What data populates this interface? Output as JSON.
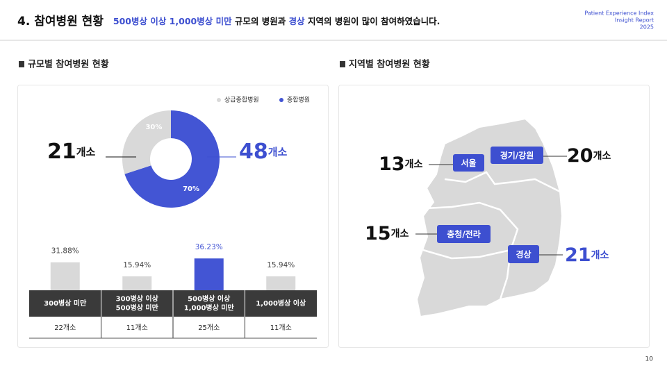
{
  "header": {
    "number_title": "4. 참여병원 현황",
    "highlight_1": "500병상 이상 1,000병상 미만",
    "text_1": " 규모의 병원과 ",
    "highlight_2": "경상",
    "text_2": " 지역의 병원이 많이 참여하였습니다.",
    "brand": [
      "Patient Experience Index",
      "Insight Report",
      "2025"
    ]
  },
  "size_section": {
    "title": "규모별 참여병원 현황",
    "donut": {
      "series": [
        {
          "name": "상급종합병원",
          "color": "#d9d9d9",
          "value": 30,
          "label": "30%",
          "count": "21",
          "unit": "개소"
        },
        {
          "name": "종합병원",
          "color": "#4355d4",
          "value": 70,
          "label": "70%",
          "count": "48",
          "unit": "개소"
        }
      ]
    },
    "bars": {
      "values": [
        31.88,
        15.94,
        36.23,
        15.94
      ],
      "value_labels": [
        "31.88%",
        "15.94%",
        "36.23%",
        "15.94%"
      ],
      "colors": [
        "#d9d9d9",
        "#d9d9d9",
        "#4355d4",
        "#d9d9d9"
      ],
      "highlight_color": "#4355d4"
    },
    "table": {
      "header": [
        [
          "300병상 미만"
        ],
        [
          "300병상 이상",
          "500병상 미만"
        ],
        [
          "500병상 이상",
          "1,000병상 미만"
        ],
        [
          "1,000병상 이상"
        ]
      ],
      "row": [
        "22개소",
        "11개소",
        "25개소",
        "11개소"
      ]
    }
  },
  "region_section": {
    "title": "지역별 참여병원 현황",
    "regions": [
      {
        "name": "서울",
        "count": "13",
        "unit": "개소"
      },
      {
        "name": "경기/강원",
        "count": "20",
        "unit": "개소"
      },
      {
        "name": "충청/전라",
        "count": "15",
        "unit": "개소"
      },
      {
        "name": "경상",
        "count": "21",
        "unit": "개소"
      }
    ]
  },
  "page_number": "10"
}
